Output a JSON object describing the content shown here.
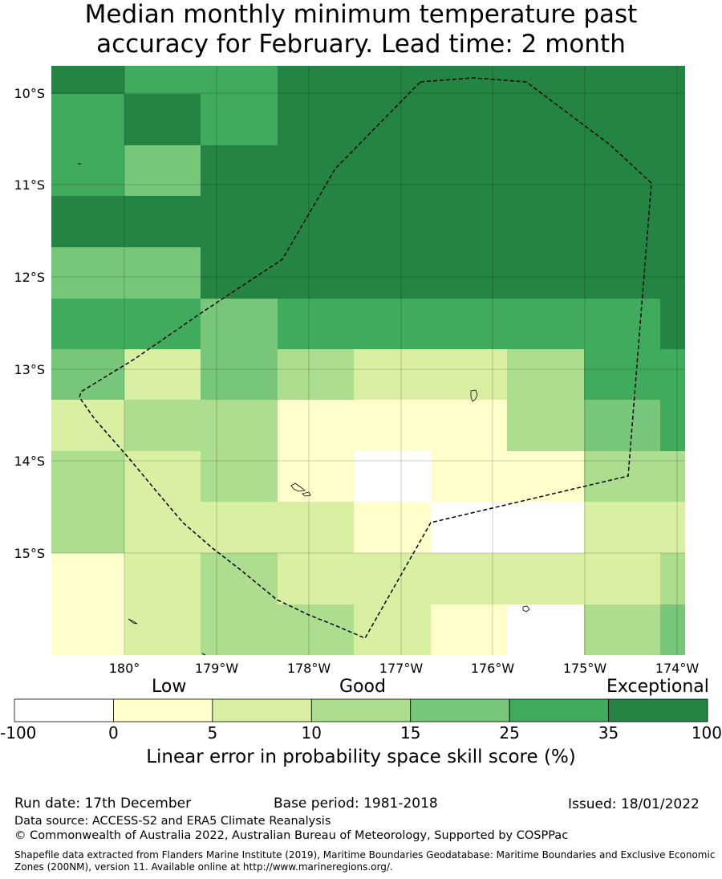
{
  "title": {
    "line1": "Median monthly minimum temperature past",
    "line2": "accuracy for February. Lead time: 2 month"
  },
  "map": {
    "lon_labels": [
      "180°",
      "179°W",
      "178°W",
      "177°W",
      "176°W",
      "175°W",
      "174°W"
    ],
    "lat_labels": [
      "10°S",
      "11°S",
      "12°S",
      "13°S",
      "14°S",
      "15°S"
    ],
    "cell_categories": [
      [
        6,
        5,
        5,
        6,
        6,
        6,
        6,
        6,
        6
      ],
      [
        5,
        6,
        5,
        6,
        6,
        6,
        6,
        6,
        6
      ],
      [
        5,
        4,
        6,
        6,
        6,
        6,
        6,
        6,
        6
      ],
      [
        6,
        6,
        6,
        6,
        6,
        6,
        6,
        6,
        6
      ],
      [
        4,
        4,
        6,
        6,
        6,
        6,
        6,
        6,
        6
      ],
      [
        5,
        5,
        4,
        5,
        5,
        5,
        5,
        5,
        6
      ],
      [
        4,
        2,
        4,
        3,
        2,
        2,
        3,
        5,
        5
      ],
      [
        2,
        3,
        3,
        1,
        1,
        1,
        3,
        4,
        5
      ],
      [
        3,
        2,
        3,
        1,
        0,
        1,
        1,
        3,
        3
      ],
      [
        3,
        2,
        2,
        2,
        1,
        0,
        0,
        2,
        2
      ],
      [
        1,
        2,
        3,
        2,
        2,
        2,
        2,
        2,
        3
      ],
      [
        1,
        2,
        3,
        3,
        2,
        1,
        0,
        3,
        4
      ]
    ],
    "eez_boundary_style": "dashed black"
  },
  "legend": {
    "category_labels": [
      "Low",
      "Good",
      "Exceptional"
    ],
    "colors": [
      "#ffffff",
      "#ffffcc",
      "#d9f0a3",
      "#addd8e",
      "#78c679",
      "#41ab5d",
      "#238443"
    ],
    "ticks": [
      "-100",
      "0",
      "5",
      "10",
      "15",
      "25",
      "35",
      "100"
    ],
    "title": "Linear error in probability space skill score (%)"
  },
  "footer": {
    "run_date": "Run date: 17th December",
    "base_period": "Base period: 1981-2018",
    "issued": "Issued: 18/01/2022",
    "data_source": "Data source: ACCESS-S2 and ERA5 Climate Reanalysis",
    "copyright": "© Commonwealth of Australia 2022, Australian Bureau of Meteorology, Supported by COSPPac",
    "shapefile": "Shapefile data extracted from Flanders Marine Institute (2019), Maritime Boundaries Geodatabase: Maritime Boundaries and Exclusive Economic Zones (200NM), version 11. Available online at http://www.marineregions.org/."
  }
}
